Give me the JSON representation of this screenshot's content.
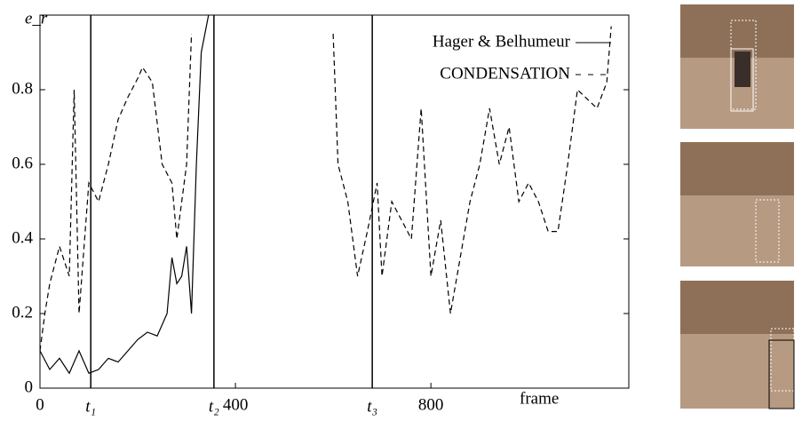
{
  "chart_data": {
    "type": "line",
    "y_label": "e_r",
    "x_label": "frame",
    "xlim": [
      0,
      1205
    ],
    "ylim": [
      0,
      1
    ],
    "xticks": [
      0,
      400,
      800
    ],
    "yticks": [
      0,
      0.2,
      0.4,
      0.6,
      0.8
    ],
    "legend": "top-right",
    "markers": [
      {
        "x": 104,
        "label": "t₁"
      },
      {
        "x": 356,
        "label": "t₂"
      },
      {
        "x": 680,
        "label": "t₃"
      }
    ],
    "series": [
      {
        "name": "Hager & Belhumeur",
        "color": "#000000",
        "dash": false,
        "x": [
          0,
          20,
          40,
          60,
          80,
          100,
          120,
          140,
          160,
          180,
          200,
          220,
          240,
          260,
          270,
          280,
          290,
          300,
          310,
          320,
          330,
          345
        ],
        "values": [
          0.1,
          0.05,
          0.08,
          0.04,
          0.1,
          0.04,
          0.05,
          0.08,
          0.07,
          0.1,
          0.13,
          0.15,
          0.14,
          0.2,
          0.35,
          0.28,
          0.3,
          0.38,
          0.2,
          0.6,
          0.9,
          1.0
        ]
      },
      {
        "name": "CONDENSATION",
        "color": "#000000",
        "dash": true,
        "x": [
          0,
          10,
          20,
          40,
          60,
          70,
          80,
          100,
          120,
          140,
          160,
          180,
          200,
          210,
          230,
          250,
          270,
          280,
          300,
          310,
          450,
          600,
          610,
          630,
          650,
          670,
          690,
          700,
          720,
          740,
          760,
          780,
          800,
          820,
          840,
          860,
          880,
          900,
          920,
          940,
          960,
          980,
          1000,
          1020,
          1040,
          1060,
          1080,
          1100,
          1140,
          1160,
          1169
        ],
        "values": [
          0.1,
          0.2,
          0.28,
          0.38,
          0.3,
          0.8,
          0.2,
          0.55,
          0.5,
          0.6,
          0.72,
          0.78,
          0.83,
          0.86,
          0.82,
          0.6,
          0.55,
          0.4,
          0.6,
          0.95,
          null,
          0.95,
          0.6,
          0.5,
          0.3,
          0.42,
          0.55,
          0.3,
          0.5,
          0.45,
          0.4,
          0.75,
          0.3,
          0.45,
          0.2,
          0.35,
          0.5,
          0.6,
          0.75,
          0.6,
          0.7,
          0.5,
          0.55,
          0.5,
          0.42,
          0.42,
          0.6,
          0.8,
          0.75,
          0.82,
          0.97
        ]
      }
    ]
  }
}
